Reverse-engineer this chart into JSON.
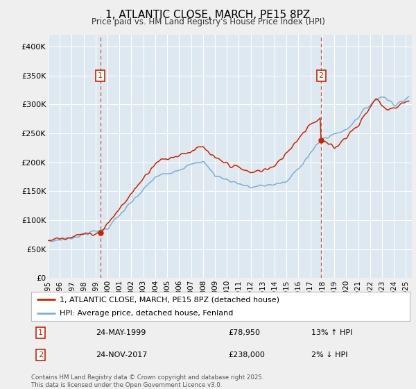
{
  "title": "1, ATLANTIC CLOSE, MARCH, PE15 8PZ",
  "subtitle": "Price paid vs. HM Land Registry's House Price Index (HPI)",
  "ylim": [
    0,
    420000
  ],
  "xlim_start": 1995.0,
  "xlim_end": 2025.5,
  "line1_color": "#cc2200",
  "line2_color": "#7ab0d4",
  "marker1_year": 1999.39,
  "marker2_year": 2017.9,
  "legend_label1": "1, ATLANTIC CLOSE, MARCH, PE15 8PZ (detached house)",
  "legend_label2": "HPI: Average price, detached house, Fenland",
  "annotation1_date": "24-MAY-1999",
  "annotation1_price": "£78,950",
  "annotation1_hpi": "13% ↑ HPI",
  "annotation2_date": "24-NOV-2017",
  "annotation2_price": "£238,000",
  "annotation2_hpi": "2% ↓ HPI",
  "footer": "Contains HM Land Registry data © Crown copyright and database right 2025.\nThis data is licensed under the Open Government Licence v3.0.",
  "yticks": [
    0,
    50000,
    100000,
    150000,
    200000,
    250000,
    300000,
    350000,
    400000
  ],
  "ytick_labels": [
    "£0",
    "£50K",
    "£100K",
    "£150K",
    "£200K",
    "£250K",
    "£300K",
    "£350K",
    "£400K"
  ],
  "xticks": [
    1995,
    1996,
    1997,
    1998,
    1999,
    2000,
    2001,
    2002,
    2003,
    2004,
    2005,
    2006,
    2007,
    2008,
    2009,
    2010,
    2011,
    2012,
    2013,
    2014,
    2015,
    2016,
    2017,
    2018,
    2019,
    2020,
    2021,
    2022,
    2023,
    2024,
    2025
  ],
  "background_color": "#efefef",
  "plot_bg_color": "#dde8f0",
  "grid_color": "#ffffff",
  "marker_box_color": "#cc2200"
}
